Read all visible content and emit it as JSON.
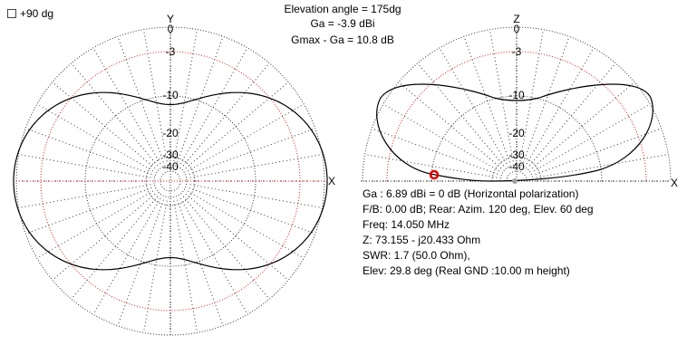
{
  "checkbox": {
    "label": "+90 dg",
    "checked": false
  },
  "header": {
    "elevation": "Elevation angle = 175dg",
    "ga": "Ga = -3.9 dBi",
    "gmax": "Gmax - Ga = 10.8 dB"
  },
  "left_plot": {
    "axis_top": "Y",
    "axis_right": "X",
    "ring_labels": [
      "0",
      "-3",
      "-10",
      "-20",
      "-30",
      "-40"
    ]
  },
  "right_plot": {
    "axis_top": "Z",
    "axis_right": "X",
    "ring_labels": [
      "0",
      "-3",
      "-10",
      "-20",
      "-30",
      "-40"
    ]
  },
  "info": {
    "ga": "Ga : 6.89 dBi = 0 dB  (Horizontal polarization)",
    "fb": "F/B: 0.00 dB; Rear: Azim. 120 deg,  Elev. 60 deg",
    "freq": "Freq: 14.050 MHz",
    "z": "Z: 73.155 - j20.433 Ohm",
    "swr": "SWR: 1.7 (50.0 Ohm),",
    "elev": "Elev: 29.8 deg (Real GND  :10.00 m height)"
  },
  "colors": {
    "grid": "#333333",
    "ref_ring": "#e02020",
    "pattern": "#000000",
    "marker": "#e00000",
    "marker_gray": "#a0a0a0"
  }
}
